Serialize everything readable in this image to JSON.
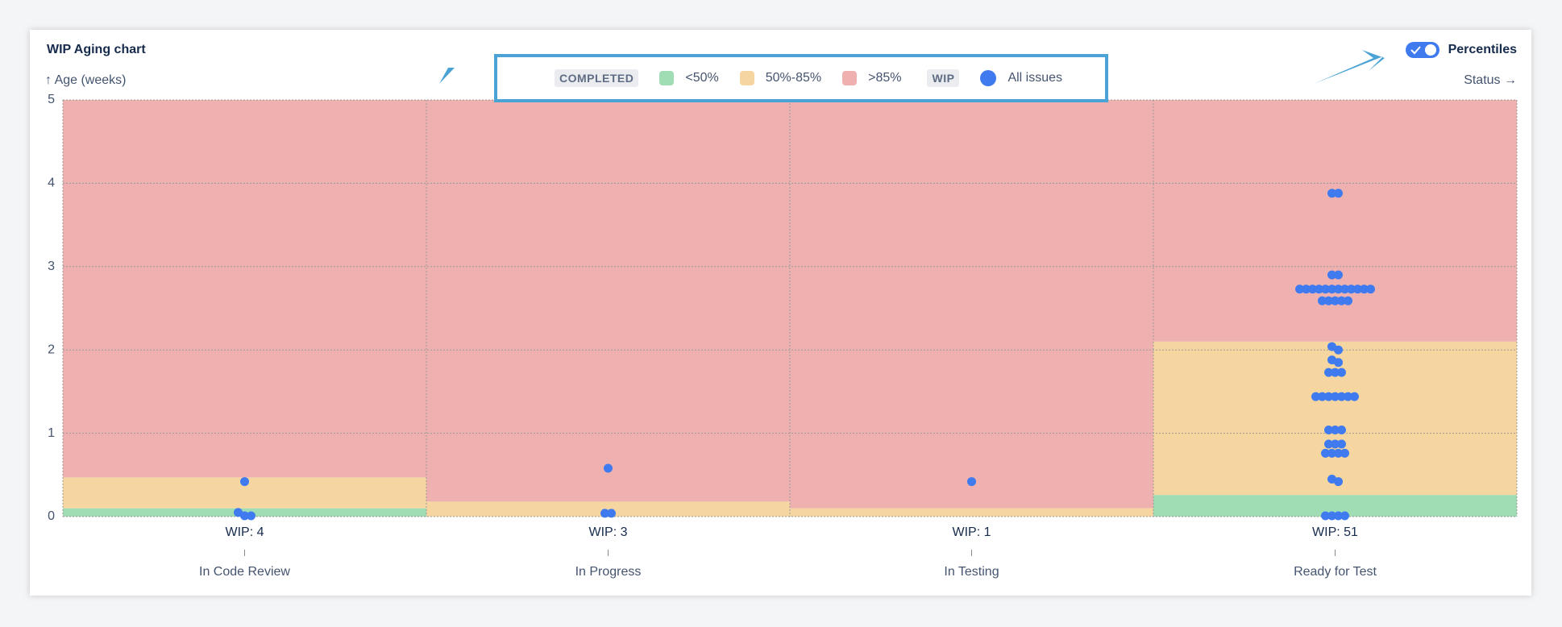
{
  "chart_data": {
    "type": "beeswarm",
    "title": "WIP Aging chart",
    "y_label": "↑ Age (weeks)",
    "x_label": "Status →",
    "toggle_label": "Percentiles",
    "legend_completed": "COMPLETED",
    "legend_wip": "WIP",
    "categories": [
      "In Code Review",
      "In Progress",
      "In Testing",
      "Ready for Test"
    ],
    "wip_labels": [
      "WIP: 4",
      "WIP: 3",
      "WIP: 1",
      "WIP: 51"
    ],
    "ylim": [
      0,
      5
    ],
    "yticks": [
      0,
      1,
      2,
      3,
      4,
      5
    ],
    "grid": true,
    "bands": [
      {
        "name": "<50%",
        "color": "#a0dcb4",
        "values": [
          0.1,
          0,
          0,
          0.26
        ]
      },
      {
        "name": "50%-85%",
        "color": "#f6d6a0",
        "values": [
          0.47,
          0.18,
          0.1,
          2.1
        ]
      },
      {
        "name": ">85%",
        "color": "#eeb1b0"
      }
    ],
    "series": [
      {
        "name": "All issues",
        "color": "#3f7bef",
        "values": [
          [
            0.42,
            0.05,
            0.01,
            0.01
          ],
          [
            0.58,
            0.04,
            0.04
          ],
          [
            0.42
          ],
          [
            3.88,
            3.88,
            2.9,
            2.9,
            2.73,
            2.73,
            2.73,
            2.73,
            2.73,
            2.73,
            2.73,
            2.73,
            2.73,
            2.73,
            2.73,
            2.73,
            2.59,
            2.59,
            2.59,
            2.59,
            2.59,
            2.04,
            2.0,
            1.88,
            1.85,
            1.73,
            1.73,
            1.73,
            1.44,
            1.44,
            1.44,
            1.44,
            1.44,
            1.44,
            1.44,
            1.04,
            1.04,
            1.04,
            0.87,
            0.87,
            0.87,
            0.76,
            0.76,
            0.76,
            0.76,
            0.45,
            0.42,
            0.01,
            0.01,
            0.01,
            0.01
          ]
        ]
      }
    ]
  }
}
